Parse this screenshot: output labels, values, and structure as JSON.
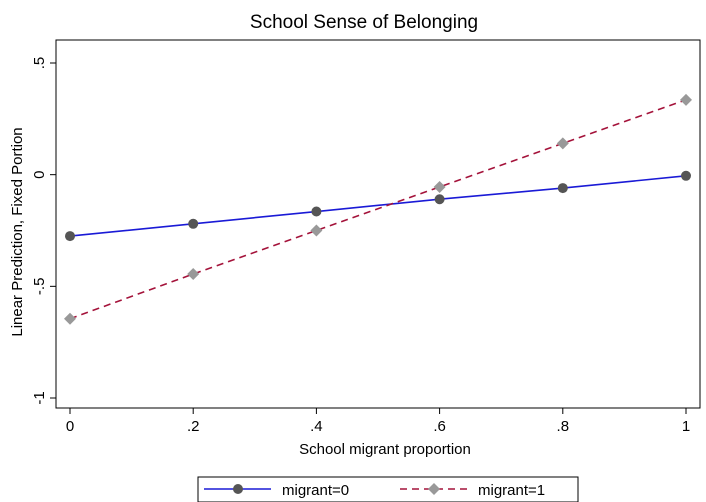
{
  "chart_data": {
    "type": "line",
    "title": "School Sense of Belonging",
    "xlabel": "School migrant proportion",
    "ylabel": "Linear Prediction, Fixed Portion",
    "xlim": [
      0,
      1
    ],
    "ylim": [
      -1,
      0.5
    ],
    "x_ticks": [
      0,
      0.2,
      0.4,
      0.6,
      0.8,
      1
    ],
    "x_tick_labels": [
      "0",
      ".2",
      ".4",
      ".6",
      ".8",
      "1"
    ],
    "y_ticks": [
      -1,
      -0.5,
      0,
      0.5
    ],
    "y_tick_labels": [
      "-1",
      "-.5",
      "0",
      ".5"
    ],
    "grid": false,
    "legend_position": "bottom",
    "x": [
      0,
      0.2,
      0.4,
      0.6,
      0.8,
      1
    ],
    "series": [
      {
        "name": "migrant=0",
        "values": [
          -0.275,
          -0.22,
          -0.165,
          -0.11,
          -0.06,
          -0.005
        ],
        "color": "#1a1ad6",
        "marker": "circle",
        "marker_color": "#555555",
        "line_style": "solid"
      },
      {
        "name": "migrant=1",
        "values": [
          -0.645,
          -0.445,
          -0.25,
          -0.055,
          0.14,
          0.335
        ],
        "color": "#a4123a",
        "marker": "diamond",
        "marker_color": "#999999",
        "line_style": "dashed"
      }
    ]
  }
}
